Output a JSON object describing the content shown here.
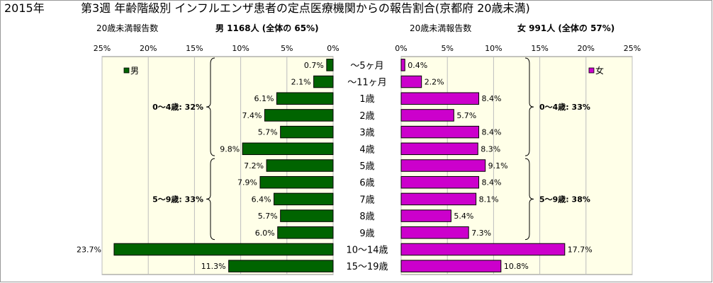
{
  "header": {
    "year": "2015年",
    "title": "第3週 年齢階級別 インフルエンザ患者の定点医療機関からの報告割合(京都府 20歳未満)",
    "left_sub_label": "20歳未満報告数",
    "left_sub_value": "男 1168人 (全体の  65%)",
    "right_sub_label": "20歳未満報告数",
    "right_sub_value": "女 991人 (全体の  57%)"
  },
  "chart_data": {
    "type": "bar",
    "orientation": "horizontal-butterfly",
    "categories": [
      "〜5ヶ月",
      "〜11ヶ月",
      "1歳",
      "2歳",
      "3歳",
      "4歳",
      "5歳",
      "6歳",
      "7歳",
      "8歳",
      "9歳",
      "10〜14歳",
      "15〜19歳"
    ],
    "series": [
      {
        "name": "男",
        "color": "#006400",
        "values": [
          0.7,
          2.1,
          6.1,
          7.4,
          5.7,
          9.8,
          7.2,
          7.9,
          6.4,
          5.7,
          6.0,
          23.7,
          11.3
        ],
        "labels": [
          "0.7%",
          "2.1%",
          "6.1%",
          "7.4%",
          "5.7%",
          "9.8%",
          "7.2%",
          "7.9%",
          "6.4%",
          "5.7%",
          "6.0%",
          "23.7%",
          "11.3%"
        ]
      },
      {
        "name": "女",
        "color": "#cc00cc",
        "values": [
          0.4,
          2.2,
          8.4,
          5.7,
          8.4,
          8.3,
          9.1,
          8.4,
          8.1,
          5.4,
          7.3,
          17.7,
          10.8
        ],
        "labels": [
          "0.4%",
          "2.2%",
          "8.4%",
          "5.7%",
          "8.4%",
          "8.3%",
          "9.1%",
          "8.4%",
          "8.1%",
          "5.4%",
          "7.3%",
          "17.7%",
          "10.8%"
        ]
      }
    ],
    "xlim": [
      0,
      25
    ],
    "x_ticks": [
      0,
      5,
      10,
      15,
      20,
      25
    ],
    "left_tick_labels": [
      "25%",
      "20%",
      "15%",
      "10%",
      "5%",
      "0%"
    ],
    "right_tick_labels": [
      "0%",
      "5%",
      "10%",
      "15%",
      "20%",
      "25%"
    ],
    "groups": {
      "male": [
        {
          "label": "0〜4歳: 32%",
          "from": 0,
          "to": 5
        },
        {
          "label": "5〜9歳: 33%",
          "from": 6,
          "to": 10
        }
      ],
      "female": [
        {
          "label": "0〜4歳: 33%",
          "from": 0,
          "to": 5
        },
        {
          "label": "5〜9歳: 38%",
          "from": 6,
          "to": 10
        }
      ]
    },
    "grid": true,
    "plot_background": "#ffffe8"
  }
}
